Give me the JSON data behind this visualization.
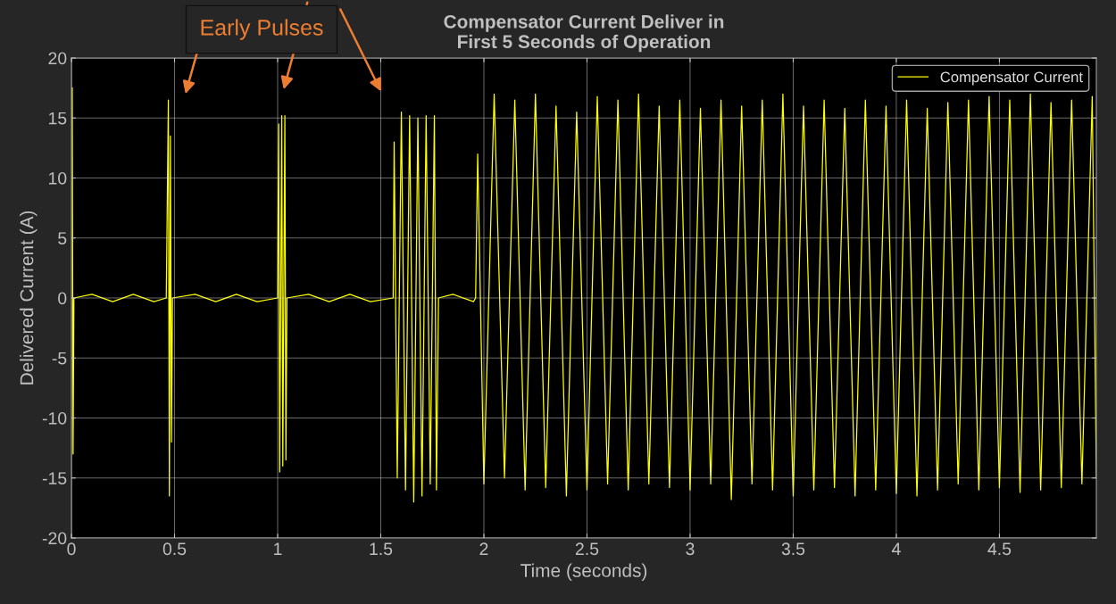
{
  "chart_data": {
    "type": "line",
    "title": "Compensator Current Deliver in\nFirst 5 Seconds of Operation",
    "xlabel": "Time (seconds)",
    "ylabel": "Delivered Current (A)",
    "annotations": [
      "Early Pulses"
    ],
    "series": [
      {
        "name": "Compensator Current",
        "color": "#ffff00",
        "x": [
          0.004,
          0.008,
          0.012,
          0.1,
          0.2,
          0.3,
          0.4,
          0.46,
          0.47,
          0.475,
          0.48,
          0.485,
          0.49,
          0.6,
          0.7,
          0.8,
          0.9,
          1.0,
          1.005,
          1.01,
          1.02,
          1.025,
          1.035,
          1.04,
          1.045,
          1.15,
          1.25,
          1.35,
          1.45,
          1.56,
          1.565,
          1.58,
          1.6,
          1.62,
          1.64,
          1.66,
          1.68,
          1.7,
          1.72,
          1.74,
          1.76,
          1.77,
          1.78,
          1.85,
          1.95,
          1.96,
          1.97,
          2.0,
          2.05,
          2.1,
          2.15,
          2.2,
          2.25,
          2.3,
          2.35,
          2.4,
          2.45,
          2.5,
          2.55,
          2.6,
          2.65,
          2.7,
          2.75,
          2.8,
          2.85,
          2.9,
          2.95,
          3.0,
          3.05,
          3.1,
          3.15,
          3.2,
          3.25,
          3.3,
          3.35,
          3.4,
          3.45,
          3.5,
          3.55,
          3.6,
          3.65,
          3.7,
          3.75,
          3.8,
          3.85,
          3.9,
          3.95,
          4.0,
          4.05,
          4.1,
          4.15,
          4.2,
          4.25,
          4.3,
          4.35,
          4.4,
          4.45,
          4.5,
          4.55,
          4.6,
          4.65,
          4.7,
          4.75,
          4.8,
          4.85,
          4.9,
          4.95,
          4.97
        ],
        "values": [
          17.5,
          -13,
          0,
          0.3,
          -0.3,
          0.3,
          -0.3,
          0,
          16.5,
          -16.5,
          13.5,
          -12,
          0,
          0.3,
          -0.3,
          0.3,
          -0.3,
          0,
          14.5,
          -14.5,
          15.2,
          -14,
          15.2,
          -13.5,
          0,
          0.3,
          -0.3,
          0.3,
          -0.3,
          0,
          13,
          -15,
          15.5,
          -16,
          15.2,
          -17,
          15,
          -16.5,
          15.2,
          -15.5,
          15.2,
          -16,
          0,
          0.3,
          -0.3,
          0,
          12,
          -15.5,
          17,
          -15,
          16.5,
          -16,
          17,
          -15.8,
          16,
          -16.5,
          15.5,
          -16,
          16.8,
          -15.5,
          16.5,
          -16,
          17,
          -15.5,
          16,
          -15.8,
          16.5,
          -16,
          15.8,
          -15.5,
          16.5,
          -16.8,
          16,
          -15.5,
          16.5,
          -16,
          17,
          -16.5,
          16,
          -16,
          16.5,
          -15.8,
          15.8,
          -16.5,
          16.5,
          -16,
          16,
          -16.3,
          16.5,
          -16.5,
          15.8,
          -16,
          16.3,
          -15.5,
          16.5,
          -16,
          16.8,
          -15.8,
          16.5,
          -16.2,
          17,
          -16,
          16.3,
          -15.8,
          16.5,
          -15.5,
          16.8,
          -15
        ]
      }
    ],
    "xlim": [
      0,
      4.97
    ],
    "ylim": [
      -20,
      20
    ],
    "xticks": [
      0,
      0.5,
      1,
      1.5,
      2,
      2.5,
      3,
      3.5,
      4,
      4.5
    ],
    "yticks": [
      -20,
      -15,
      -10,
      -5,
      0,
      5,
      10,
      15,
      20
    ],
    "grid": true,
    "legend": "top right",
    "line_style": "solid",
    "marker": "none"
  }
}
